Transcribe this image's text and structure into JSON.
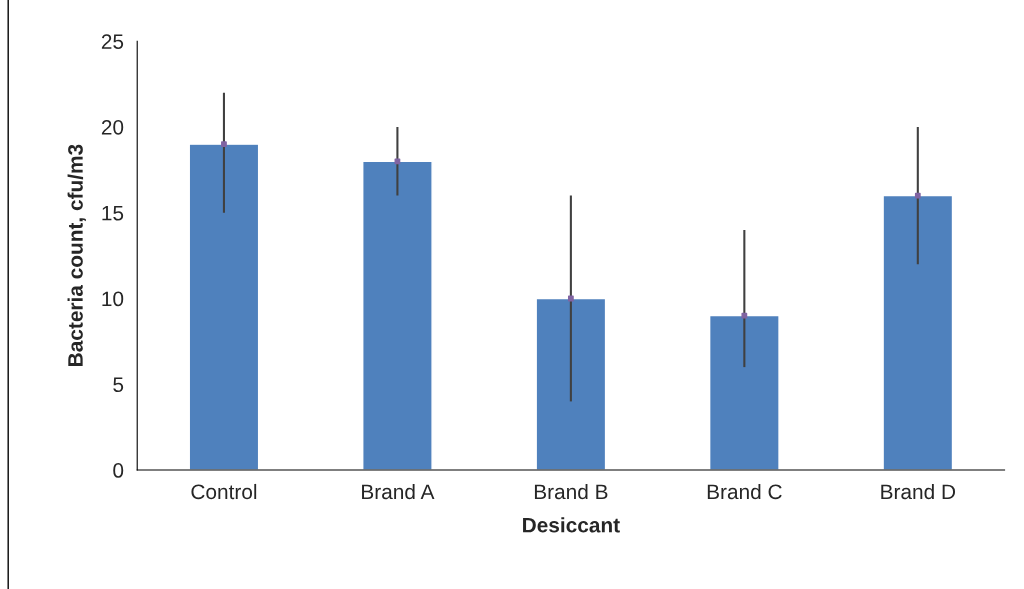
{
  "chart_data": {
    "type": "bar",
    "xlabel": "Desiccant",
    "ylabel": "Bacteria count, cfu/m3",
    "categories": [
      "Control",
      "Brand A",
      "Brand B",
      "Brand C",
      "Brand D"
    ],
    "series": [
      {
        "color": "#4f81bd",
        "values": [
          19,
          18,
          10,
          9,
          16
        ],
        "errors": [
          [
            15,
            22
          ],
          [
            16,
            20
          ],
          [
            4,
            16
          ],
          [
            6,
            14
          ],
          [
            12,
            20
          ]
        ]
      },
      {
        "type": "scatter",
        "color": "#8064a2",
        "x": [
          "Control",
          "Brand A",
          "Brand B",
          "Brand C",
          "Brand D"
        ],
        "values": [
          19,
          18,
          10,
          9,
          16
        ],
        "marker": "square"
      }
    ],
    "ylim": [
      0,
      25
    ],
    "yticks": [
      0,
      5,
      10,
      15,
      20,
      25
    ],
    "grid": false
  }
}
